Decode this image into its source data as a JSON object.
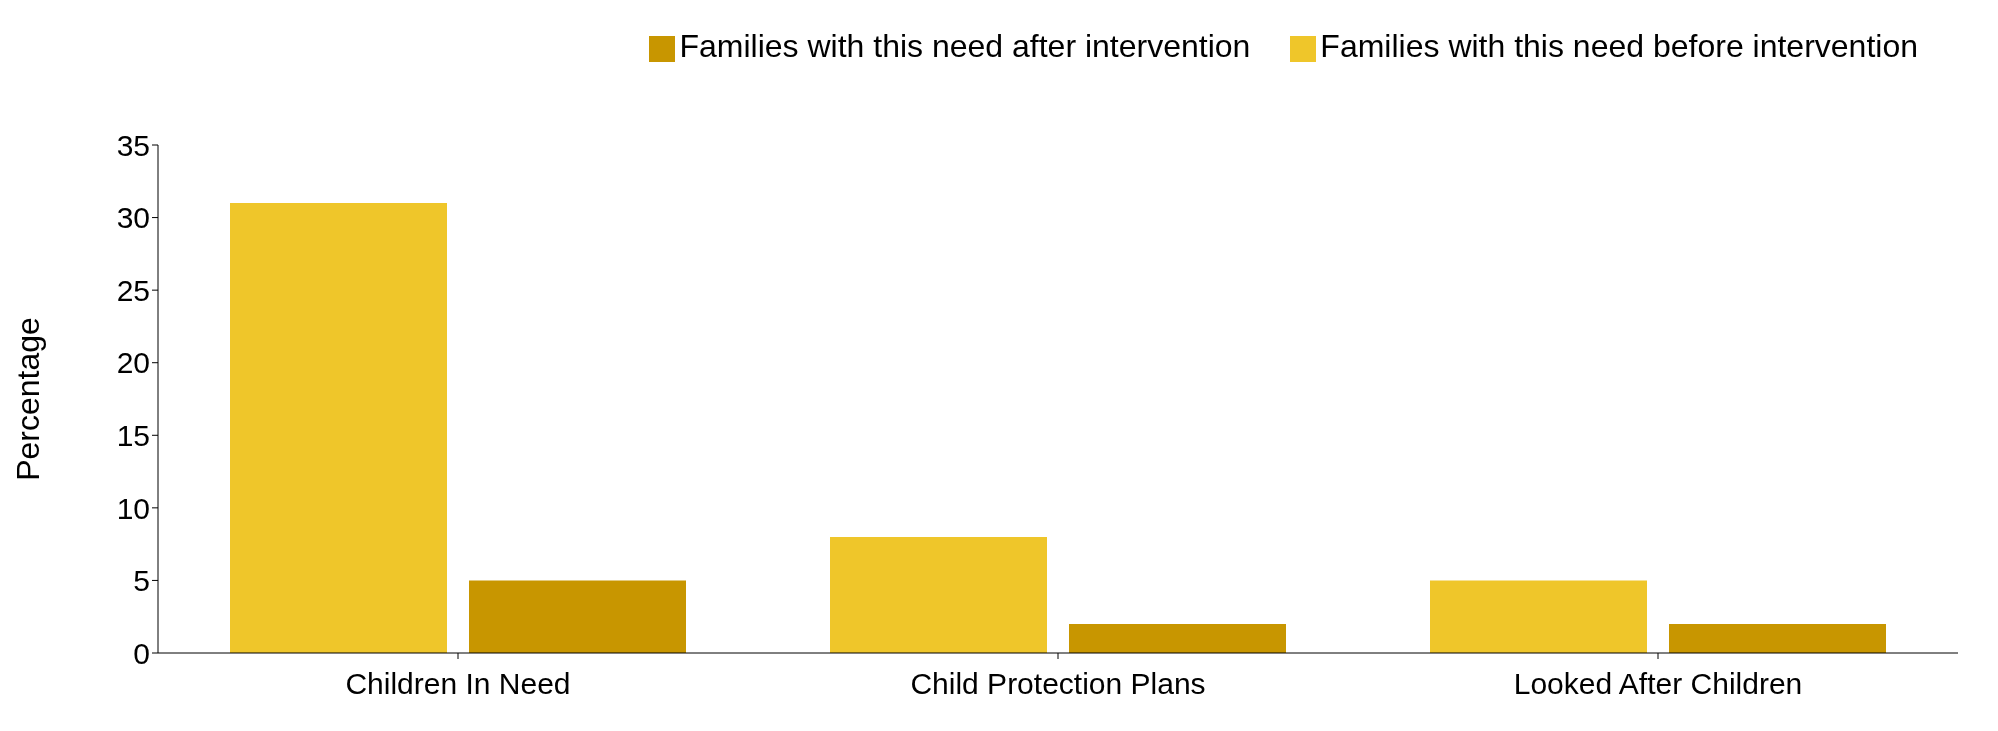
{
  "chart_data": {
    "type": "bar",
    "ylabel": "Percentage",
    "categories": [
      "Children In Need",
      "Child Protection Plans",
      "Looked After Children"
    ],
    "series": [
      {
        "name": "Families with this need before intervention",
        "color": "#efc62a",
        "values": [
          31,
          8,
          5
        ]
      },
      {
        "name": "Families with this need after intervention",
        "color": "#c89600",
        "values": [
          5,
          2,
          2
        ]
      }
    ],
    "ylim": [
      0,
      35
    ],
    "yticks": [
      0,
      5,
      10,
      15,
      20,
      25,
      30,
      35
    ],
    "grid": false,
    "legend": "top right"
  }
}
